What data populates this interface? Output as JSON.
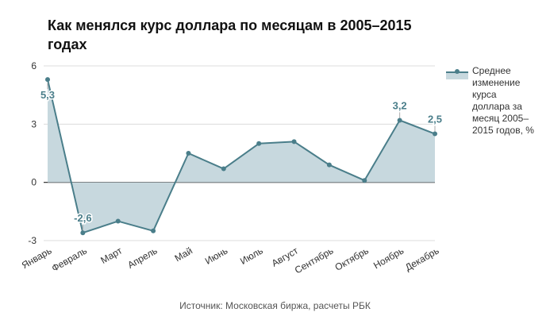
{
  "title": "Как менялся курс доллара по месяцам в 2005–2015 годах",
  "source": "Источник: Московская биржа, расчеты РБК",
  "colors": {
    "line": "#4a7e8a",
    "fill": "#c7d8de",
    "grid": "#dcdcdc",
    "label": "#4a7e8a"
  },
  "chart_data": {
    "type": "area",
    "title": "Как менялся курс доллара по месяцам в 2005–2015 годах",
    "xlabel": "",
    "ylabel": "",
    "ylim": [
      -3,
      6
    ],
    "yticks": [
      6,
      3,
      0,
      -3
    ],
    "grid": true,
    "legend_position": "right",
    "categories": [
      "Январь",
      "Февраль",
      "Март",
      "Апрель",
      "Май",
      "Июнь",
      "Июль",
      "Август",
      "Сентябрь",
      "Октябрь",
      "Ноябрь",
      "Декабрь"
    ],
    "series": [
      {
        "name": "Среднее изменение курса доллара за месяц 2005–2015 годов, %",
        "values": [
          5.3,
          -2.6,
          -2.0,
          -2.5,
          1.5,
          0.7,
          2.0,
          2.1,
          0.9,
          0.1,
          3.2,
          2.5
        ]
      }
    ],
    "data_labels": [
      {
        "index": 0,
        "text": "5,3"
      },
      {
        "index": 1,
        "text": "-2,6"
      },
      {
        "index": 10,
        "text": "3,2"
      },
      {
        "index": 11,
        "text": "2,5"
      }
    ]
  }
}
